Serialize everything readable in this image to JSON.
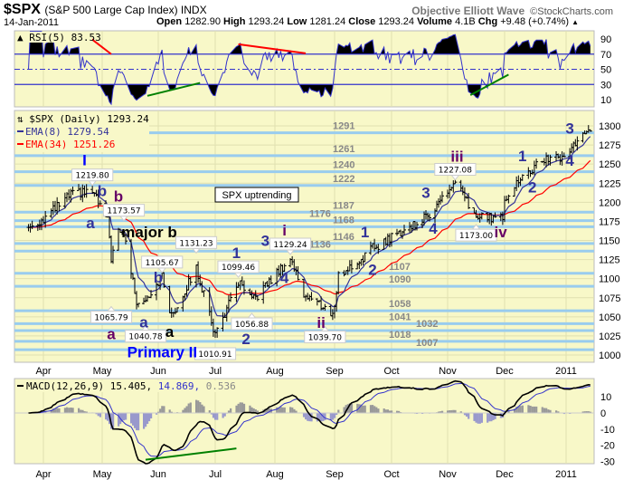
{
  "header": {
    "symbol": "$SPX",
    "name": "(S&P 500 Large Cap Index) INDX",
    "author": "Objective Elliott Wave",
    "copyright": "©StockCharts.com",
    "date": "14-Jan-2011",
    "open_label": "Open",
    "open": "1282.90",
    "high_label": "High",
    "high": "1293.24",
    "low_label": "Low",
    "low": "1281.24",
    "close_label": "Close",
    "close": "1293.24",
    "volume_label": "Volume",
    "volume": "4.1B",
    "chg_label": "Chg",
    "chg": "+9.48 (+0.74%)",
    "up_icon": "▲"
  },
  "colors": {
    "bg": "#f8f8c8",
    "grid": "#e0e0b0",
    "level": "#99ccee",
    "ema8": "#333399",
    "ema34": "#ff0000",
    "rsi": "#3333cc",
    "macd": "#000000",
    "signal": "#3333cc",
    "hist": "#9999aa",
    "red": "#ff0000",
    "green": "#008000"
  },
  "chart_data": [
    {
      "type": "ohlc",
      "title": "$SPX (Daily) 1293.24",
      "legend": [
        "EMA(8) 1279.54",
        "EMA(34) 1251.26"
      ],
      "ylim": [
        990,
        1310
      ],
      "yticks": [
        1000,
        1025,
        1050,
        1075,
        1100,
        1125,
        1150,
        1175,
        1200,
        1225,
        1250,
        1275,
        1300
      ],
      "xticks": [
        "Apr",
        "May",
        "Jun",
        "Jul",
        "Aug",
        "Sep",
        "Oct",
        "Nov",
        "Dec",
        "2011"
      ],
      "start": "2010-03-24",
      "end": "2011-01-14",
      "close_path": [
        [
          "2010-03-24",
          1167
        ],
        [
          "2010-04-01",
          1178
        ],
        [
          "2010-04-15",
          1210
        ],
        [
          "2010-04-26",
          1214
        ],
        [
          "2010-05-04",
          1175
        ],
        [
          "2010-05-06",
          1128
        ],
        [
          "2010-05-10",
          1159
        ],
        [
          "2010-05-13",
          1160
        ],
        [
          "2010-05-20",
          1071
        ],
        [
          "2010-05-25",
          1074
        ],
        [
          "2010-06-03",
          1102
        ],
        [
          "2010-06-08",
          1050
        ],
        [
          "2010-06-21",
          1114
        ],
        [
          "2010-07-01",
          1027
        ],
        [
          "2010-07-07",
          1060
        ],
        [
          "2010-07-13",
          1095
        ],
        [
          "2010-07-20",
          1070
        ],
        [
          "2010-08-09",
          1127
        ],
        [
          "2010-08-16",
          1080
        ],
        [
          "2010-08-27",
          1062
        ],
        [
          "2010-08-31",
          1050
        ],
        [
          "2010-09-03",
          1104
        ],
        [
          "2010-09-13",
          1121
        ],
        [
          "2010-09-21",
          1140
        ],
        [
          "2010-10-05",
          1160
        ],
        [
          "2010-10-20",
          1180
        ],
        [
          "2010-11-05",
          1225
        ],
        [
          "2010-11-16",
          1180
        ],
        [
          "2010-11-30",
          1181
        ],
        [
          "2010-12-01",
          1206
        ],
        [
          "2010-12-07",
          1225
        ],
        [
          "2010-12-22",
          1258
        ],
        [
          "2010-12-31",
          1258
        ],
        [
          "2011-01-05",
          1276
        ],
        [
          "2011-01-14",
          1293.24
        ]
      ],
      "levels": [
        1291,
        1261,
        1240,
        1222,
        1187,
        1176,
        1168,
        1146,
        1136,
        1107,
        1090,
        1058,
        1041,
        1032,
        1018,
        1007
      ],
      "annotations": [
        {
          "text": "I",
          "date": "2010-04-22",
          "price": 1251,
          "color": "#0000ff"
        },
        {
          "text": "b",
          "date": "2010-05-01",
          "price": 1213,
          "color": "#333399"
        },
        {
          "text": "b",
          "date": "2010-05-10",
          "price": 1196,
          "color": "#660066"
        },
        {
          "text": "a",
          "date": "2010-04-25",
          "price": 1166,
          "color": "#333399"
        },
        {
          "text": "major b",
          "date": "2010-05-27",
          "price": 1154,
          "color": "#000000"
        },
        {
          "text": "b",
          "date": "2010-06-01",
          "price": 1121,
          "color": "#333399"
        },
        {
          "text": "a",
          "date": "2010-05-06",
          "price": 1040,
          "color": "#660066"
        },
        {
          "text": "a",
          "date": "2010-05-24",
          "price": 1017,
          "color": "#333399"
        },
        {
          "text": "a",
          "date": "2010-06-06",
          "price": 1024,
          "color": "#000000"
        },
        {
          "text": "Primary II",
          "date": "2010-06-05",
          "price": 997,
          "color": "#0000ff"
        },
        {
          "text": "1",
          "date": "2010-07-12",
          "price": 1127,
          "color": "#333399"
        },
        {
          "text": "2",
          "date": "2010-07-17",
          "price": 1026,
          "color": "#333399"
        },
        {
          "text": "3",
          "date": "2010-07-27",
          "price": 1143,
          "color": "#333399"
        },
        {
          "text": "4",
          "date": "2010-08-06",
          "price": 1094,
          "color": "#333399"
        },
        {
          "text": "i",
          "date": "2010-08-06",
          "price": 1152,
          "color": "#660066"
        },
        {
          "text": "ii",
          "date": "2010-08-25",
          "price": 1014,
          "color": "#660066"
        },
        {
          "text": "1",
          "date": "2010-09-17",
          "price": 1154,
          "color": "#333399"
        },
        {
          "text": "2",
          "date": "2010-09-21",
          "price": 1105,
          "color": "#333399"
        },
        {
          "text": "3",
          "date": "2010-10-20",
          "price": 1206,
          "color": "#333399"
        },
        {
          "text": "4",
          "date": "2010-10-24",
          "price": 1159,
          "color": "#333399"
        },
        {
          "text": "iii",
          "date": "2010-11-06",
          "price": 1251,
          "color": "#660066"
        },
        {
          "text": "iv",
          "date": "2010-11-27",
          "price": 1154,
          "color": "#660066"
        },
        {
          "text": "1",
          "date": "2010-12-10",
          "price": 1254,
          "color": "#333399"
        },
        {
          "text": "2",
          "date": "2010-12-15",
          "price": 1213,
          "color": "#333399"
        },
        {
          "text": "3",
          "date": "2011-01-03",
          "price": 1290,
          "color": "#333399"
        },
        {
          "text": "4",
          "date": "2011-01-03",
          "price": 1248,
          "color": "#333399"
        }
      ],
      "callouts": [
        {
          "text": "1219.80",
          "date": "2010-04-26",
          "price": 1219.8,
          "place": "above"
        },
        {
          "text": "1173.57",
          "date": "2010-05-13",
          "price": 1173.57,
          "place": "above"
        },
        {
          "text": "1065.79",
          "date": "2010-05-06",
          "price": 1065.79,
          "place": "below"
        },
        {
          "text": "1040.78",
          "date": "2010-05-25",
          "price": 1040.78,
          "place": "below"
        },
        {
          "text": "1131.23",
          "date": "2010-06-21",
          "price": 1131.23,
          "place": "above"
        },
        {
          "text": "1105.67",
          "date": "2010-06-03",
          "price": 1105.67,
          "place": "above"
        },
        {
          "text": "1010.91",
          "date": "2010-07-01",
          "price": 1010.91,
          "place": "below"
        },
        {
          "text": "1099.46",
          "date": "2010-07-13",
          "price": 1099.46,
          "place": "above"
        },
        {
          "text": "1056.88",
          "date": "2010-07-20",
          "price": 1056.88,
          "place": "below"
        },
        {
          "text": "1129.24",
          "date": "2010-08-09",
          "price": 1129.24,
          "place": "above"
        },
        {
          "text": "1039.70",
          "date": "2010-08-27",
          "price": 1039.7,
          "place": "below"
        },
        {
          "text": "1227.08",
          "date": "2010-11-05",
          "price": 1227.08,
          "place": "above"
        },
        {
          "text": "1173.00",
          "date": "2010-11-16",
          "price": 1173.0,
          "place": "below"
        }
      ],
      "note": "SPX uptrending"
    },
    {
      "type": "line",
      "title": "RSI(5) 83.53",
      "ylim": [
        0,
        100
      ],
      "yticks": [
        10,
        30,
        50,
        70,
        90
      ],
      "divergence_lines": [
        {
          "color": "red",
          "from": [
            "2010-04-23",
            95
          ],
          "to": [
            "2010-05-06",
            70
          ]
        },
        {
          "color": "green",
          "from": [
            "2010-05-26",
            15
          ],
          "to": [
            "2010-06-23",
            32
          ]
        },
        {
          "color": "red",
          "from": [
            "2010-07-13",
            83
          ],
          "to": [
            "2010-08-17",
            71
          ]
        },
        {
          "color": "green",
          "from": [
            "2010-11-13",
            16
          ],
          "to": [
            "2010-12-03",
            43
          ]
        }
      ]
    },
    {
      "type": "line",
      "title": "MACD(12,26,9)",
      "macd": "15.405",
      "signal": "14.869",
      "histogram": "0.536",
      "ylim": [
        -32,
        22
      ],
      "yticks": [
        10,
        0,
        -10,
        -20,
        -30
      ],
      "divergence_lines": [
        {
          "color": "green",
          "from": [
            "2010-05-25",
            -29
          ],
          "to": [
            "2010-07-12",
            -22
          ]
        }
      ]
    }
  ]
}
